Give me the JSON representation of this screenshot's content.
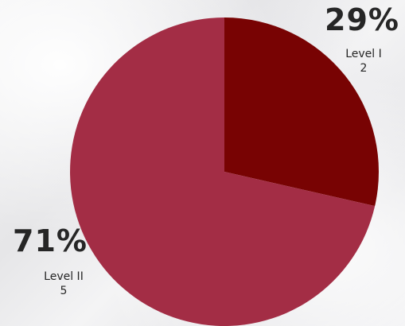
{
  "chart_data": {
    "type": "pie",
    "title": "",
    "start_angle_deg": 0,
    "direction": "clockwise",
    "slices": [
      {
        "label": "Level I",
        "value": 2,
        "percent_label": "29%",
        "color": "#780303"
      },
      {
        "label": "Level II",
        "value": 5,
        "percent_label": "71%",
        "color": "#a32d45"
      }
    ]
  }
}
